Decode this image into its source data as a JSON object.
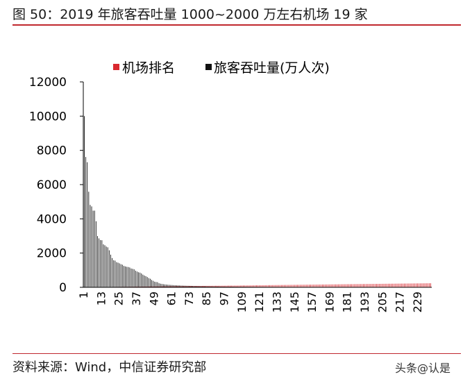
{
  "figure": {
    "title": "图 50：2019 年旅客吞吐量 1000~2000 万左右机场 19 家",
    "source": "资料来源：Wind，中信证券研究部",
    "watermark": "头条@认是"
  },
  "colors": {
    "accent_red": "#c0272d",
    "series_rank": "#d9282f",
    "series_throughput": "#111111"
  },
  "chart_data": {
    "type": "bar",
    "title": "",
    "xlabel": "",
    "ylabel": "",
    "ylim": [
      0,
      12000
    ],
    "yticks": [
      0,
      2000,
      4000,
      6000,
      8000,
      10000,
      12000
    ],
    "xtick_labels": [
      "1",
      "13",
      "25",
      "37",
      "49",
      "61",
      "73",
      "85",
      "97",
      "109",
      "121",
      "133",
      "145",
      "157",
      "169",
      "181",
      "193",
      "205",
      "217",
      "229"
    ],
    "x_start": 1,
    "count": 238,
    "legend": {
      "placement": "top",
      "entries": [
        "机场排名",
        "旅客吞吐量(万人次)"
      ]
    },
    "series": [
      {
        "name": "机场排名",
        "color": "#d9282f",
        "values_rule": "rank equals x (1..238)"
      },
      {
        "name": "旅客吞吐量(万人次)",
        "color": "#111111",
        "values_head": [
          10001,
          7615,
          7306,
          5583,
          4812,
          4725,
          4479,
          4479,
          3858,
          2994,
          2858,
          2762,
          2750,
          2510,
          2458,
          2380,
          2335,
          2162,
          1908,
          1710,
          1580,
          1560,
          1470,
          1440,
          1400,
          1350,
          1320,
          1250,
          1220,
          1200,
          1185,
          1160,
          1100,
          1080,
          1050,
          970,
          920,
          880,
          860,
          810,
          740,
          690,
          650,
          600,
          540,
          500,
          430,
          380,
          330,
          310
        ],
        "tail_start": 300,
        "tail_end": 5
      }
    ]
  }
}
